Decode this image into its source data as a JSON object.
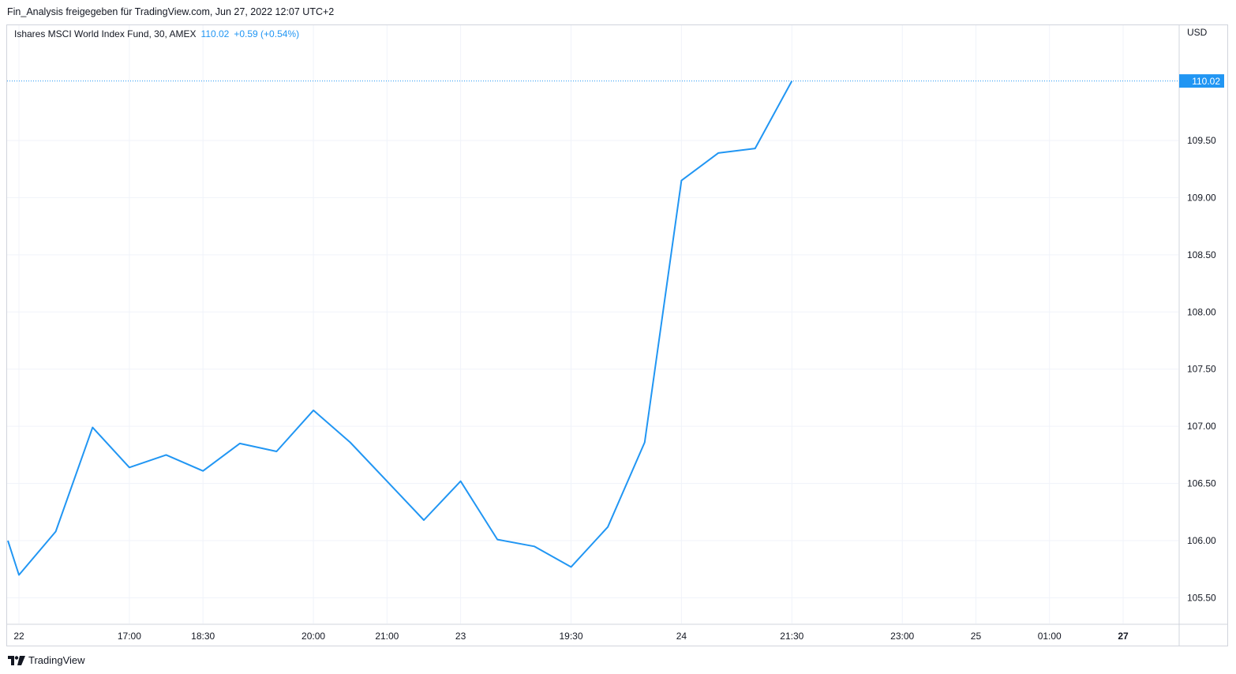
{
  "header": {
    "shared_by": "Fin_Analysis freigegeben für TradingView.com, Jun 27, 2022 12:07 UTC+2"
  },
  "legend": {
    "symbol": "Ishares MSCI World Index Fund, 30, AMEX",
    "last_value": "110.02",
    "change": "+0.59 (+0.54%)"
  },
  "currency": "USD",
  "last_price_label": "110.02",
  "brand": {
    "logo_glyph": "𝟭𝟳",
    "name": "TradingView"
  },
  "colors": {
    "line": "#2196f3",
    "grid": "#f0f3fa",
    "border": "#d1d4dc",
    "price_tag": "#2196f3"
  },
  "chart_data": {
    "type": "line",
    "title": "Ishares MSCI World Index Fund, 30, AMEX",
    "ylabel": "USD",
    "ylim": [
      105.3,
      110.33
    ],
    "yticks": [
      105.5,
      106.0,
      106.5,
      107.0,
      107.5,
      108.0,
      108.5,
      109.0,
      109.5
    ],
    "ytick_labels": [
      "105.50",
      "106.00",
      "106.50",
      "107.00",
      "107.50",
      "108.00",
      "108.50",
      "109.00",
      "109.50"
    ],
    "xlim": [
      -0.2,
      31.5
    ],
    "xticks": [
      {
        "x": 0.0,
        "label": "22",
        "bold": false
      },
      {
        "x": 3.0,
        "label": "17:00",
        "bold": false
      },
      {
        "x": 5.0,
        "label": "18:30",
        "bold": false
      },
      {
        "x": 8.0,
        "label": "20:00",
        "bold": false
      },
      {
        "x": 10.0,
        "label": "21:00",
        "bold": false
      },
      {
        "x": 12.0,
        "label": "23",
        "bold": false
      },
      {
        "x": 15.0,
        "label": "19:30",
        "bold": false
      },
      {
        "x": 18.0,
        "label": "24",
        "bold": false
      },
      {
        "x": 21.0,
        "label": "21:30",
        "bold": false
      },
      {
        "x": 24.0,
        "label": "23:00",
        "bold": false
      },
      {
        "x": 26.0,
        "label": "25",
        "bold": false
      },
      {
        "x": 28.0,
        "label": "01:00",
        "bold": false
      },
      {
        "x": 30.0,
        "label": "27",
        "bold": true
      }
    ],
    "series": [
      {
        "x": [
          -0.3,
          0.0,
          1.0,
          2.0,
          3.0,
          4.0,
          5.0,
          6.0,
          7.0,
          8.0,
          9.0,
          10.0,
          11.0,
          12.0,
          13.0,
          14.0,
          15.0,
          16.0,
          17.0,
          18.0,
          19.0,
          20.0,
          21.0
        ],
        "values": [
          106.0,
          105.7,
          106.08,
          106.99,
          106.64,
          106.75,
          106.61,
          106.85,
          106.78,
          107.14,
          106.86,
          106.52,
          106.18,
          106.52,
          106.01,
          105.95,
          105.77,
          106.12,
          106.86,
          109.15,
          109.39,
          109.43,
          110.02
        ]
      }
    ],
    "last_value": 110.02,
    "grid": true
  }
}
